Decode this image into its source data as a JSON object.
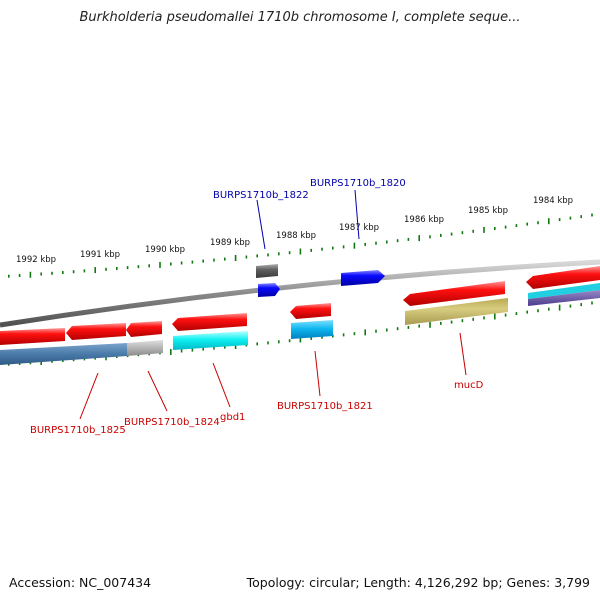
{
  "title": "Burkholderia pseudomallei 1710b chromosome I, complete seque...",
  "footer": {
    "accession": "Accession: NC_007434",
    "topology": "Topology: circular; Length: 4,126,292 bp; Genes: 3,799"
  },
  "colors": {
    "backbone": "#808080",
    "tick": "#107a10",
    "gene_forward": "#0000ff",
    "gene_reverse": "#ff0000",
    "label_top": "#0000aa",
    "label_bottom": "#c80000"
  },
  "kbp_ticks": [
    "1992 kbp",
    "1991 kbp",
    "1990 kbp",
    "1989 kbp",
    "1988 kbp",
    "1987 kbp",
    "1986 kbp",
    "1985 kbp",
    "1984 kbp"
  ],
  "gene_labels_top": [
    "BURPS1710b_1822",
    "BURPS1710b_1820"
  ],
  "gene_labels_bottom": [
    "BURPS1710b_1825",
    "BURPS1710b_1824",
    "gbd1",
    "BURPS1710b_1821",
    "mucD"
  ]
}
